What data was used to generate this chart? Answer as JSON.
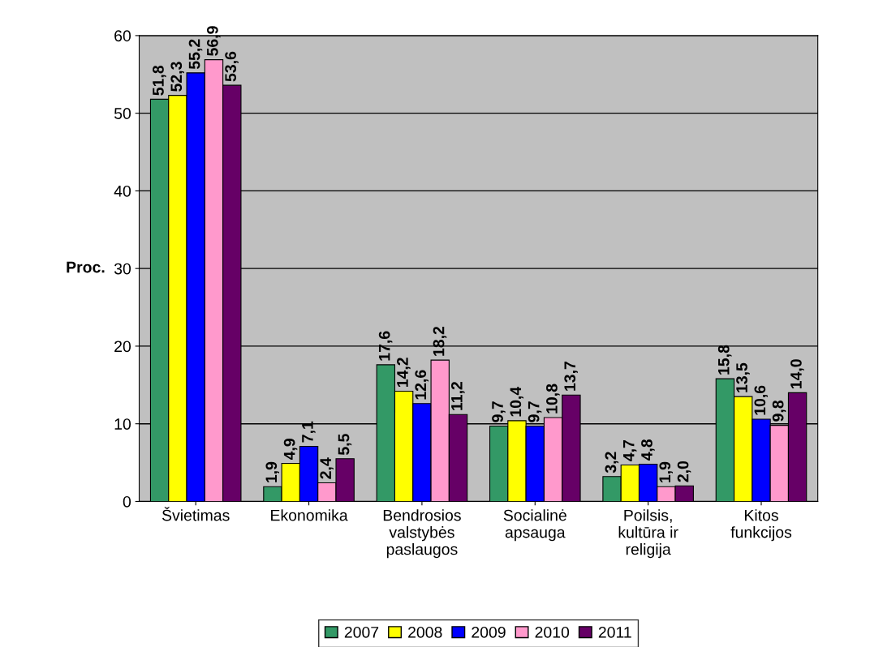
{
  "chart_data": {
    "type": "bar",
    "ylabel": "Proc.",
    "categories": [
      "Švietimas",
      "Ekonomika",
      "Bendrosios\nvalstybės\npaslaugos",
      "Socialinė\napsauga",
      "Poilsis,\nkultūra ir\nreligija",
      "Kitos\nfunkcijos"
    ],
    "series": [
      {
        "name": "2007",
        "color": "#339966",
        "values": [
          51.8,
          1.9,
          17.6,
          9.7,
          3.2,
          15.8
        ],
        "value_labels": [
          "51,8",
          "1,9",
          "17,6",
          "9,7",
          "3,2",
          "15,8"
        ]
      },
      {
        "name": "2008",
        "color": "#ffff00",
        "values": [
          52.3,
          4.9,
          14.2,
          10.4,
          4.7,
          13.5
        ],
        "value_labels": [
          "52,3",
          "4,9",
          "14,2",
          "10,4",
          "4,7",
          "13,5"
        ]
      },
      {
        "name": "2009",
        "color": "#0000ff",
        "values": [
          55.2,
          7.1,
          12.6,
          9.7,
          4.8,
          10.6
        ],
        "value_labels": [
          "55,2",
          "7,1",
          "12,6",
          "9,7",
          "4,8",
          "10,6"
        ]
      },
      {
        "name": "2010",
        "color": "#ff99cc",
        "values": [
          56.9,
          2.4,
          18.2,
          10.8,
          1.9,
          9.8
        ],
        "value_labels": [
          "56,9",
          "2,4",
          "18,2",
          "10,8",
          "1,9",
          "9,8"
        ]
      },
      {
        "name": "2011",
        "color": "#660066",
        "values": [
          53.6,
          5.5,
          11.2,
          13.7,
          2.0,
          14.0
        ],
        "value_labels": [
          "53,6",
          "5,5",
          "11,2",
          "13,7",
          "2,0",
          "14,0"
        ]
      }
    ],
    "ylim": [
      0,
      60
    ],
    "yticks": [
      0,
      10,
      20,
      30,
      40,
      50,
      60
    ],
    "grid": "y",
    "legend": "bottom"
  }
}
